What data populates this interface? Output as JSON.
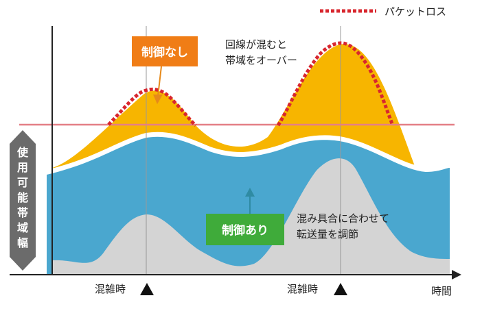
{
  "legend": {
    "packet_loss_label": "パケットロス",
    "packet_loss_color": "#d8262e"
  },
  "y_axis_label_chars": [
    "使",
    "用",
    "可",
    "能",
    "帯",
    "域",
    "幅"
  ],
  "x_axis_label": "時間",
  "peak_markers": [
    {
      "label": "混雑時",
      "icon": "triangle-up-icon"
    },
    {
      "label": "混雑時",
      "icon": "triangle-up-icon"
    }
  ],
  "callouts": {
    "no_control_label": "制御なし",
    "no_control_color": "#f07d16",
    "overflow_note_line1": "回線が混むと",
    "overflow_note_line2": "帯域をオーバー",
    "with_control_label": "制御あり",
    "with_control_color": "#3fab3a",
    "adjust_note_line1": "混み具合に合わせて",
    "adjust_note_line2": "転送量を調節"
  },
  "colors": {
    "uncontrolled_area": "#f7b500",
    "controlled_area": "#4aa7cf",
    "background_traffic": "#d4d4d4",
    "bandwidth_limit_line": "#e47f86",
    "axis": "#222222",
    "y_label_badge": "#6b6b6b"
  }
}
